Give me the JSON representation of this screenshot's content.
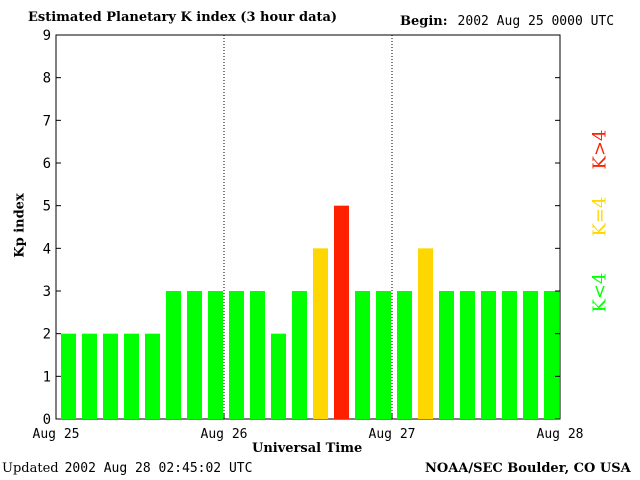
{
  "title": "Estimated Planetary K index (3 hour data)",
  "begin": {
    "label": "Begin:",
    "value": "2002 Aug 25 0000 UTC"
  },
  "updated": {
    "label": "Updated",
    "value": "2002 Aug 28 02:45:02 UTC"
  },
  "source": "NOAA/SEC Boulder, CO USA",
  "legend": [
    {
      "text": "K<4",
      "color": "#00ff00"
    },
    {
      "text": "K=4",
      "color": "#ffd700"
    },
    {
      "text": "K>4",
      "color": "#ff2000"
    }
  ],
  "chart_data": {
    "type": "bar",
    "xlabel": "Universal Time",
    "ylabel": "Kp index",
    "ylim": [
      0,
      9
    ],
    "yticks": [
      0,
      1,
      2,
      3,
      4,
      5,
      6,
      7,
      8,
      9
    ],
    "x_tick_labels": [
      "Aug 25",
      "Aug 26",
      "Aug 27",
      "Aug 28"
    ],
    "values": [
      2,
      2,
      2,
      2,
      2,
      3,
      3,
      3,
      3,
      3,
      2,
      3,
      4,
      5,
      3,
      3,
      3,
      4,
      3,
      3,
      3,
      3,
      3,
      3
    ],
    "colors": {
      "below4": "#00ff00",
      "equal4": "#ffd700",
      "above4": "#ff2000"
    },
    "grid": "dotted vertical lines at day boundaries"
  }
}
